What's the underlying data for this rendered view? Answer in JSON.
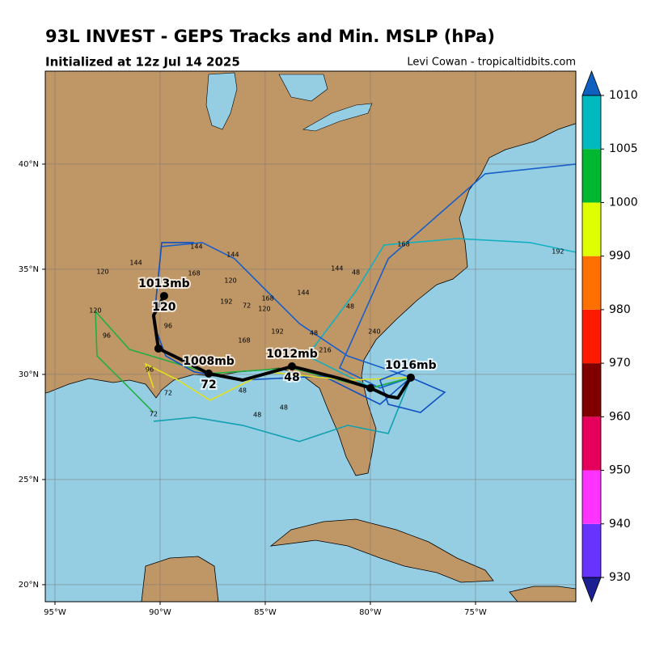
{
  "header": {
    "title": "93L INVEST - GEPS Tracks and Min. MSLP (hPa)",
    "subtitle": "Initialized at 12z Jul 14 2025",
    "credit": "Levi Cowan - tropicaltidbits.com"
  },
  "map": {
    "type": "map",
    "xlim": [
      -95.46,
      -70.23
    ],
    "ylim": [
      19.19,
      44.42
    ],
    "grid": true,
    "xticks": [
      {
        "value": -95,
        "label": "95°W"
      },
      {
        "value": -90,
        "label": "90°W"
      },
      {
        "value": -85,
        "label": "85°W"
      },
      {
        "value": -80,
        "label": "80°W"
      },
      {
        "value": -75,
        "label": "75°W"
      }
    ],
    "yticks": [
      {
        "value": 20,
        "label": "20°N"
      },
      {
        "value": 25,
        "label": "25°N"
      },
      {
        "value": 30,
        "label": "30°N"
      },
      {
        "value": 35,
        "label": "35°N"
      },
      {
        "value": 40,
        "label": "40°N"
      }
    ],
    "tracks": [
      {
        "color": "#1a5fc8",
        "lon": [
          -78.08,
          -79.54,
          -81.46,
          -79.15,
          -74.54,
          -70.23
        ],
        "lat": [
          29.85,
          29.35,
          30.31,
          35.5,
          39.54,
          40.0
        ]
      },
      {
        "color": "#10b0c0",
        "lon": [
          -78.08,
          -79.92,
          -83.0,
          -80.69,
          -79.35,
          -75.88,
          -72.42,
          -70.23
        ],
        "lat": [
          29.85,
          29.35,
          30.88,
          33.96,
          36.15,
          36.46,
          36.27,
          35.81
        ]
      },
      {
        "color": "#20b040",
        "lon": [
          -78.08,
          -80.0,
          -83.77,
          -87.62,
          -91.46,
          -93.08,
          -93.0,
          -91.46,
          -90.31
        ],
        "lat": [
          29.85,
          29.35,
          30.31,
          30.04,
          31.19,
          33.0,
          30.88,
          29.35,
          28.19
        ]
      },
      {
        "color": "#1050c0",
        "lon": [
          -78.08,
          -79.54,
          -82.23,
          -86.08,
          -88.38,
          -89.73,
          -90.31,
          -89.92,
          -88.38
        ],
        "lat": [
          29.85,
          28.58,
          29.92,
          29.73,
          30.12,
          30.88,
          32.42,
          36.27,
          36.27
        ]
      },
      {
        "color": "#10a0b0",
        "lon": [
          -78.08,
          -79.15,
          -81.08,
          -83.38,
          -86.08,
          -88.38,
          -90.31
        ],
        "lat": [
          29.85,
          27.19,
          27.58,
          26.81,
          27.58,
          27.96,
          27.77
        ]
      },
      {
        "color": "#e0e020",
        "lon": [
          -78.08,
          -81.08,
          -84.92,
          -87.62,
          -89.15,
          -90.69,
          -90.31
        ],
        "lat": [
          29.85,
          29.73,
          30.12,
          28.77,
          29.73,
          30.5,
          29.35
        ]
      },
      {
        "color": "#1a5fc8",
        "lon": [
          -78.08,
          -81.08,
          -83.38,
          -84.92,
          -86.46,
          -88.0,
          -89.92
        ],
        "lat": [
          29.85,
          30.88,
          32.42,
          33.96,
          35.5,
          36.27,
          36.08
        ]
      },
      {
        "color": "#1050c0",
        "lon": [
          -78.08,
          -76.46,
          -77.62,
          -79.15,
          -79.54,
          -77.62
        ],
        "lat": [
          29.85,
          29.15,
          28.19,
          28.58,
          29.73,
          30.5
        ]
      }
    ],
    "hour_labels": [
      {
        "label": "144",
        "lon": -88.27,
        "lat": 36.08
      },
      {
        "label": "144",
        "lon": -86.54,
        "lat": 35.69
      },
      {
        "label": "144",
        "lon": -91.15,
        "lat": 35.31
      },
      {
        "label": "144",
        "lon": -83.19,
        "lat": 33.88
      },
      {
        "label": "144",
        "lon": -81.58,
        "lat": 35.04
      },
      {
        "label": "120",
        "lon": -92.73,
        "lat": 34.88
      },
      {
        "label": "120",
        "lon": -86.65,
        "lat": 34.46
      },
      {
        "label": "120",
        "lon": -85.04,
        "lat": 33.12
      },
      {
        "label": "120",
        "lon": -93.08,
        "lat": 33.04
      },
      {
        "label": "168",
        "lon": -88.38,
        "lat": 34.81
      },
      {
        "label": "168",
        "lon": -84.88,
        "lat": 33.62
      },
      {
        "label": "168",
        "lon": -78.42,
        "lat": 36.19
      },
      {
        "label": "168",
        "lon": -86.0,
        "lat": 31.62
      },
      {
        "label": "192",
        "lon": -86.85,
        "lat": 33.46
      },
      {
        "label": "192",
        "lon": -84.42,
        "lat": 32.04
      },
      {
        "label": "192",
        "lon": -71.08,
        "lat": 35.85
      },
      {
        "label": "48",
        "lon": -80.69,
        "lat": 34.85
      },
      {
        "label": "48",
        "lon": -80.96,
        "lat": 33.23
      },
      {
        "label": "48",
        "lon": -82.69,
        "lat": 31.96
      },
      {
        "label": "48",
        "lon": -86.08,
        "lat": 29.23
      },
      {
        "label": "48",
        "lon": -85.38,
        "lat": 28.08
      },
      {
        "label": "48",
        "lon": -84.12,
        "lat": 28.42
      },
      {
        "label": "72",
        "lon": -85.88,
        "lat": 33.27
      },
      {
        "label": "72",
        "lon": -89.62,
        "lat": 29.12
      },
      {
        "label": "72",
        "lon": -90.31,
        "lat": 28.12
      },
      {
        "label": "96",
        "lon": -92.54,
        "lat": 31.85
      },
      {
        "label": "96",
        "lon": -89.62,
        "lat": 32.31
      },
      {
        "label": "96",
        "lon": -90.5,
        "lat": 30.23
      },
      {
        "label": "240",
        "lon": -79.81,
        "lat": 32.04
      },
      {
        "label": "216",
        "lon": -82.15,
        "lat": 31.15
      }
    ],
    "mean_track": {
      "color": "#000000",
      "lon": [
        -78.08,
        -78.69,
        -79.15,
        -80.0,
        -81.46,
        -83.73,
        -86.08,
        -87.69,
        -89.35,
        -90.08,
        -90.31,
        -89.81
      ],
      "lat": [
        29.85,
        28.88,
        28.96,
        29.35,
        29.81,
        30.38,
        29.73,
        30.04,
        30.88,
        31.23,
        32.81,
        33.73
      ]
    },
    "markers": [
      {
        "lon": -78.08,
        "lat": 29.85,
        "pressure_label": "1016mb"
      },
      {
        "lon": -80.0,
        "lat": 29.35
      },
      {
        "lon": -83.73,
        "lat": 30.38,
        "pressure_label": "1012mb",
        "hour_label": "48"
      },
      {
        "lon": -87.69,
        "lat": 30.04,
        "pressure_label": "1008mb",
        "hour_label": "72"
      },
      {
        "lon": -90.08,
        "lat": 31.23
      },
      {
        "lon": -89.81,
        "lat": 33.73,
        "pressure_label": "1013mb",
        "hour_label": "120"
      }
    ]
  },
  "colorbar": {
    "levels": [
      930,
      940,
      950,
      960,
      970,
      980,
      990,
      1000,
      1005,
      1010
    ],
    "colors": [
      "#6633ff",
      "#ff33ff",
      "#e6005c",
      "#800000",
      "#ff1a00",
      "#ff7000",
      "#dfff00",
      "#00b830",
      "#00b8c0"
    ],
    "under_color": "#1a2090",
    "over_color": "#1060c0"
  }
}
